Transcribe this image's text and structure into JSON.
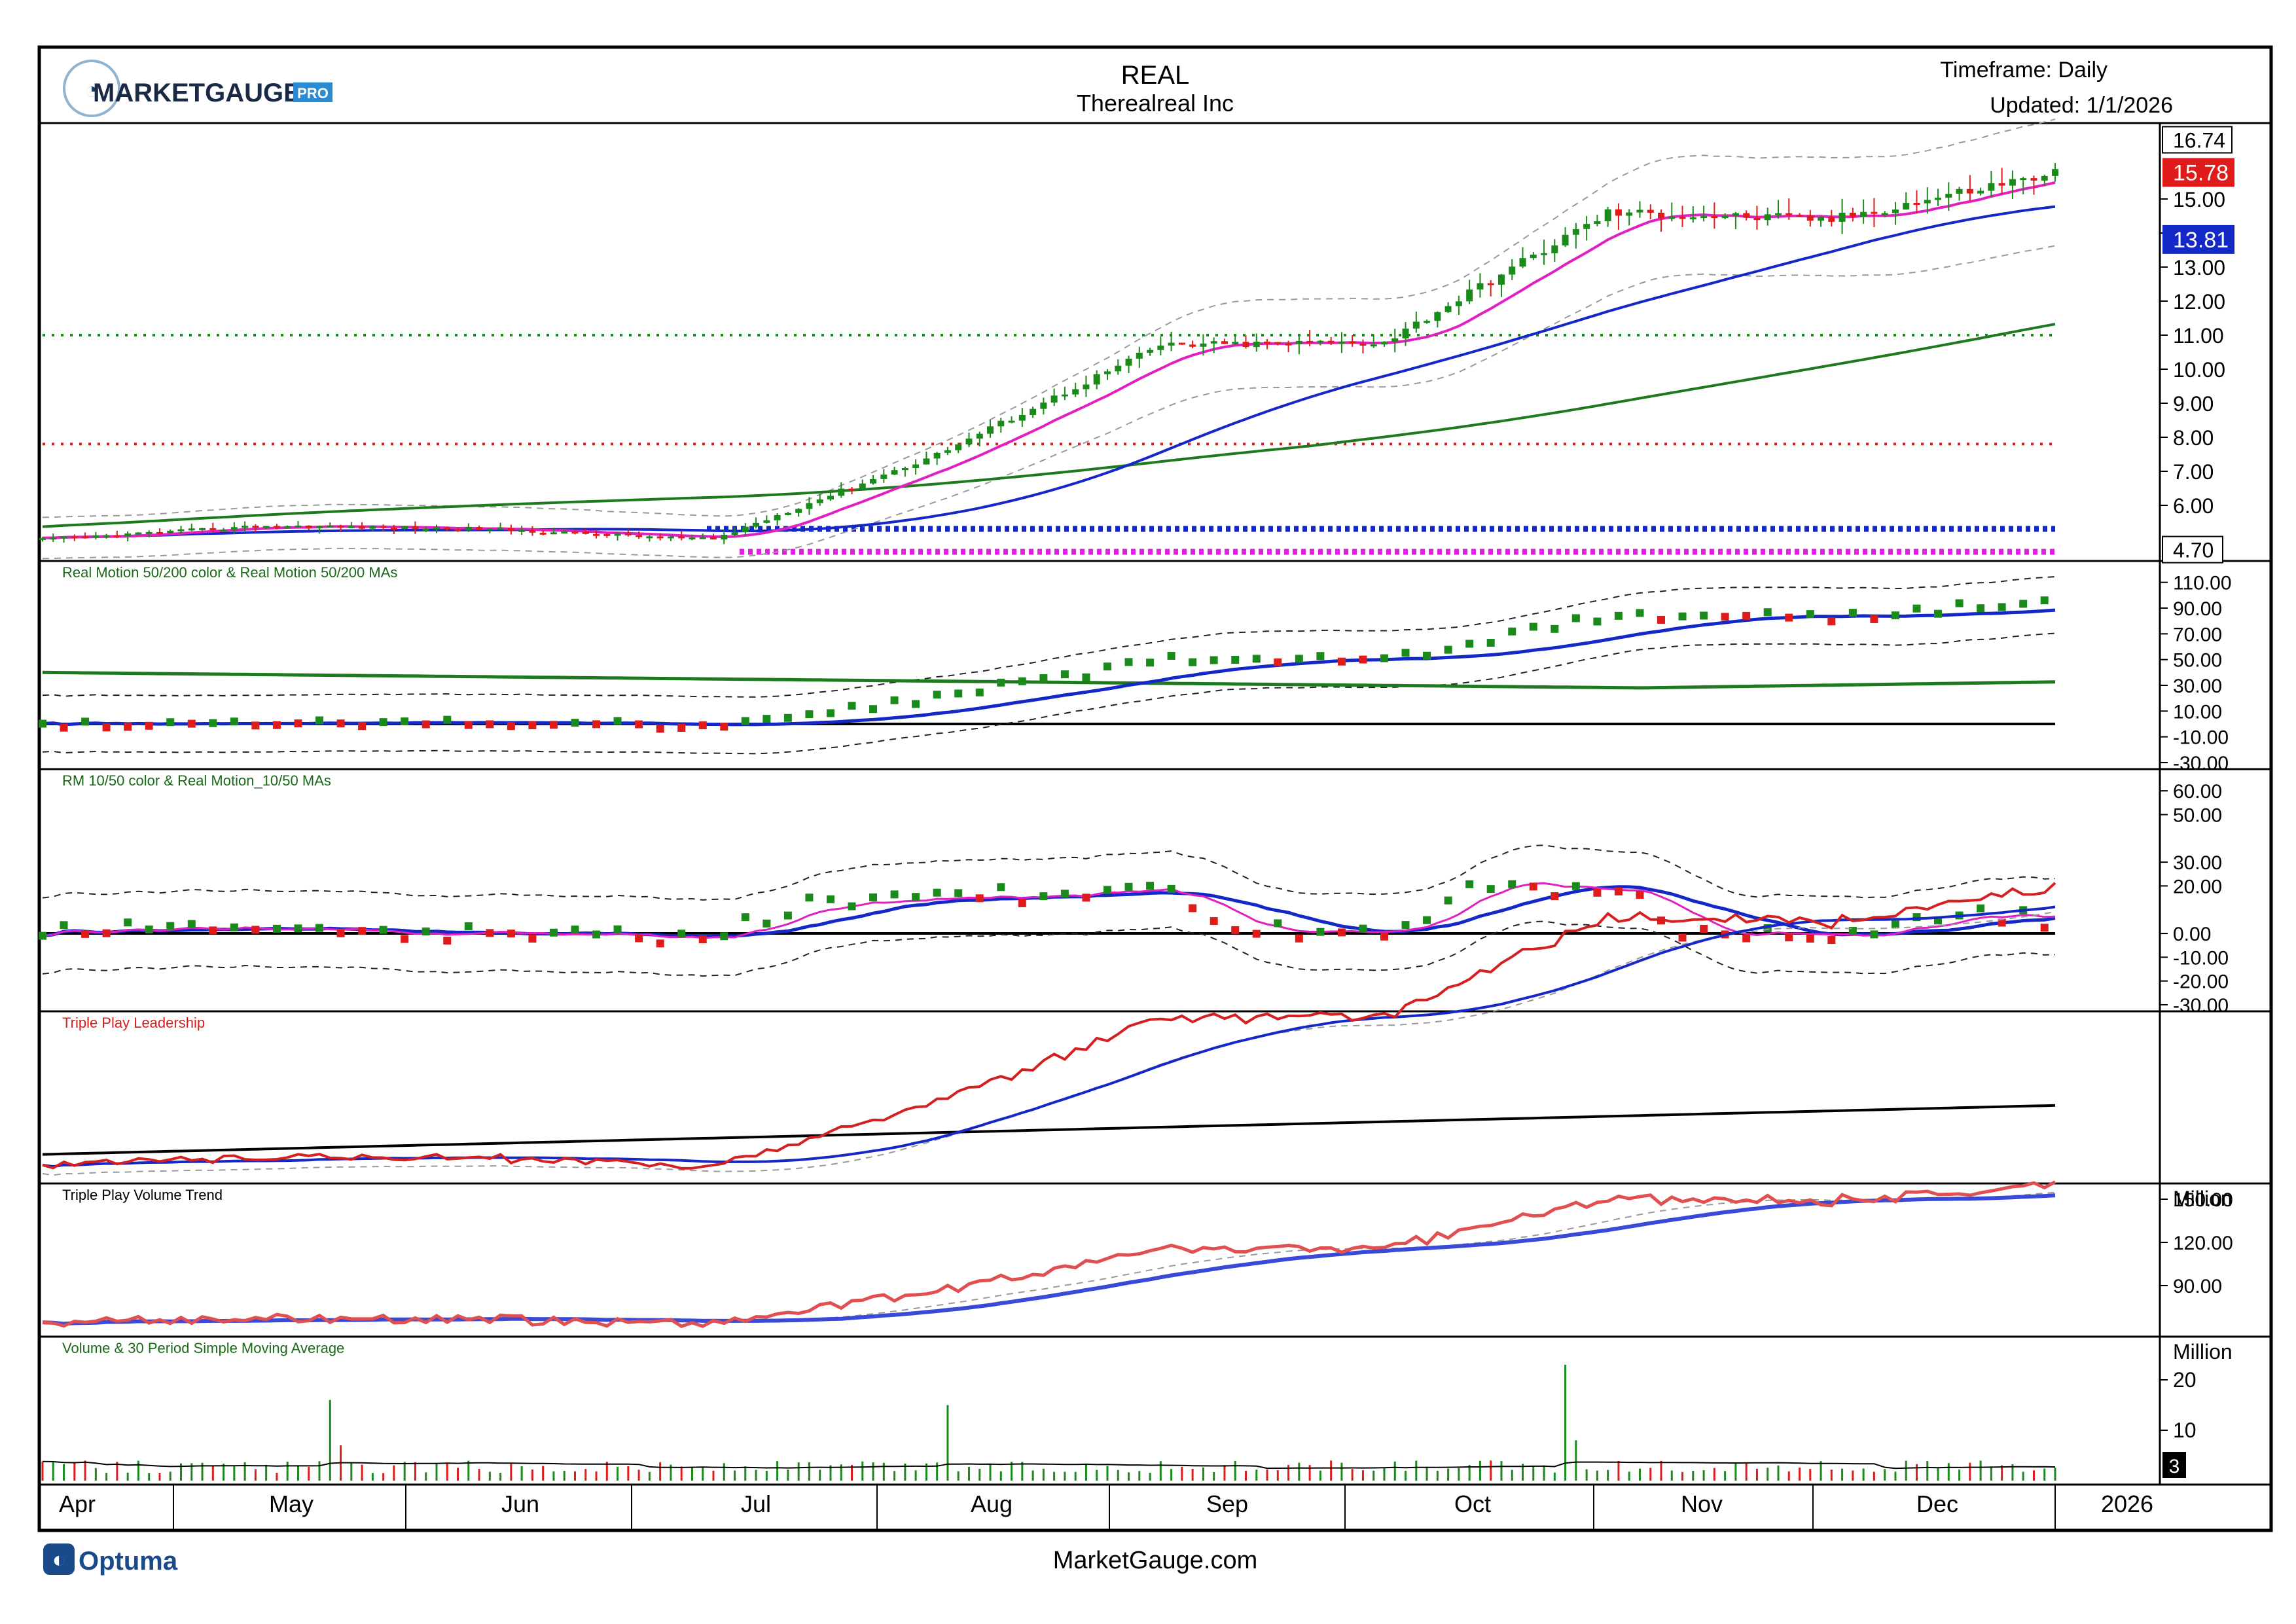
{
  "header": {
    "logo_text": "MARKETGAUGE",
    "logo_badge": "PRO",
    "symbol": "REAL",
    "company": "Therealreal Inc",
    "timeframe": "Timeframe: Daily",
    "updated": "Updated: 1/1/2026"
  },
  "footer": {
    "brand": "Optuma",
    "site": "MarketGauge.com"
  },
  "colors": {
    "up": "#1a8a1a",
    "down": "#e01b1b",
    "ma_short": "#e020c0",
    "ma_mid": "#1428c8",
    "ma_long": "#1f7a1f",
    "tp_lead": "#d42020",
    "tp_vol": "#e05050"
  },
  "chart_data": [
    {
      "type": "candlestick",
      "panel": "price",
      "last_price": "15.78",
      "ma_label": "13.81",
      "high_label": "16.74",
      "low_label": "4.70",
      "y_ticks": [
        "15.00",
        "14.00",
        "13.00",
        "12.00",
        "11.00",
        "10.00",
        "9.00",
        "8.00",
        "7.00",
        "6.00"
      ],
      "ylim": [
        4.5,
        17.0
      ],
      "x_months": [
        "Apr",
        "May",
        "Jun",
        "Jul",
        "Aug",
        "Sep",
        "Oct",
        "Nov",
        "Dec",
        "2026"
      ],
      "monthly_closes": [
        5.0,
        5.4,
        5.3,
        5.0,
        7.5,
        10.7,
        10.8,
        14.6,
        14.4,
        15.78
      ],
      "reference_lines": [
        11.0,
        7.8
      ]
    },
    {
      "type": "line",
      "panel": "indicator",
      "title": "Real Motion 50/200 color & Real Motion 50/200 MAs",
      "y_ticks": [
        "110.00",
        "90.00",
        "70.00",
        "50.00",
        "30.00",
        "10.00",
        "-10.00",
        "-30.00"
      ],
      "ylim": [
        -30,
        120
      ]
    },
    {
      "type": "line",
      "panel": "indicator",
      "title": "RM 10/50 color & Real Motion_10/50 MAs",
      "y_ticks": [
        "60.00",
        "50.00",
        "30.00",
        "20.00",
        "0.00",
        "-10.00",
        "-20.00",
        "-30.00"
      ],
      "ylim": [
        -30,
        65
      ]
    },
    {
      "type": "line",
      "panel": "indicator",
      "title": "Triple Play Leadership"
    },
    {
      "type": "line",
      "panel": "indicator",
      "title": "Triple Play Volume Trend",
      "unit": "Million",
      "y_ticks": [
        "150.00",
        "120.00",
        "90.00"
      ]
    },
    {
      "type": "bar",
      "panel": "volume",
      "title": "Volume & 30 Period Simple Moving Average",
      "unit": "Million",
      "y_ticks": [
        "20",
        "10"
      ],
      "last_value": "3"
    }
  ]
}
